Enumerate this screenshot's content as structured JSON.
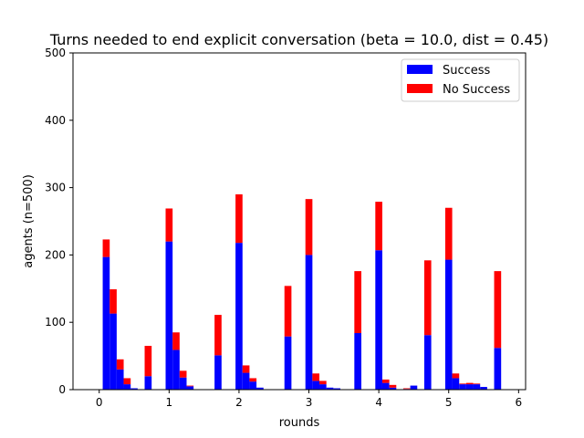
{
  "chart_data": {
    "type": "bar",
    "stacked": true,
    "title": "Turns needed to end explicit conversation (beta = 10.0, dist = 0.45)",
    "xlabel": "rounds",
    "ylabel": "agents (n=500)",
    "xlim": [
      -0.375,
      6.1
    ],
    "ylim": [
      0,
      500
    ],
    "xticks": [
      0,
      1,
      2,
      3,
      4,
      5,
      6
    ],
    "yticks": [
      0,
      100,
      200,
      300,
      400,
      500
    ],
    "bar_width": 0.1,
    "x": [
      0.1,
      0.2,
      0.3,
      0.4,
      0.5,
      0.7,
      1.0,
      1.1,
      1.2,
      1.3,
      1.7,
      2.0,
      2.1,
      2.2,
      2.3,
      2.7,
      3.0,
      3.1,
      3.2,
      3.3,
      3.4,
      3.7,
      4.0,
      4.1,
      4.2,
      4.4,
      4.5,
      4.7,
      5.0,
      5.1,
      5.2,
      5.3,
      5.4,
      5.5,
      5.7
    ],
    "series": [
      {
        "name": "Success",
        "color": "#0000ff",
        "values": [
          197,
          113,
          30,
          8,
          2,
          20,
          220,
          59,
          18,
          5,
          51,
          218,
          25,
          12,
          3,
          79,
          200,
          13,
          8,
          3,
          2,
          84,
          207,
          10,
          3,
          1,
          6,
          81,
          193,
          17,
          8,
          8,
          8,
          4,
          62
        ]
      },
      {
        "name": "No Success",
        "color": "#ff0000",
        "values": [
          26,
          36,
          15,
          9,
          0,
          45,
          49,
          26,
          10,
          1,
          60,
          72,
          11,
          5,
          0,
          75,
          83,
          11,
          5,
          0,
          0,
          92,
          72,
          5,
          4,
          1,
          0,
          111,
          77,
          7,
          1,
          2,
          1,
          0,
          114
        ]
      }
    ],
    "legend": {
      "position": "upper right",
      "entries": [
        "Success",
        "No Success"
      ]
    },
    "grid": false
  }
}
